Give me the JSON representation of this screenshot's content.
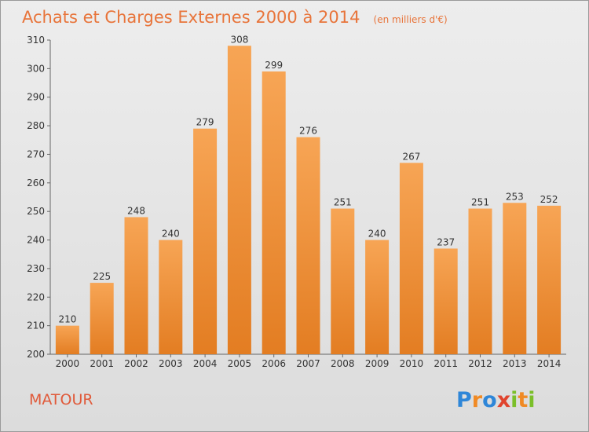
{
  "chart_data": {
    "type": "bar",
    "title": "Achats et Charges Externes 2000 à 2014",
    "subtitle": "(en milliers d'€)",
    "categories": [
      "2000",
      "2001",
      "2002",
      "2003",
      "2004",
      "2005",
      "2006",
      "2007",
      "2008",
      "2009",
      "2010",
      "2011",
      "2012",
      "2013",
      "2014"
    ],
    "values": [
      210,
      225,
      248,
      240,
      279,
      308,
      299,
      276,
      251,
      240,
      267,
      237,
      251,
      253,
      252
    ],
    "ylim": [
      200,
      310
    ],
    "yticks": [
      200,
      210,
      220,
      230,
      240,
      250,
      260,
      270,
      280,
      290,
      300,
      310
    ],
    "xlabel": "",
    "ylabel": "",
    "grid": false,
    "bar_color_top": "#f7a555",
    "bar_color_bottom": "#e37d22"
  },
  "footer": {
    "commune": "MATOUR",
    "logo": {
      "text": "Proxiti",
      "letters": [
        {
          "ch": "P",
          "color": "#2e86d8"
        },
        {
          "ch": "r",
          "color": "#f08a24"
        },
        {
          "ch": "o",
          "color": "#2e86d8"
        },
        {
          "ch": "x",
          "color": "#e0442e"
        },
        {
          "ch": "i",
          "color": "#7bbf2a"
        },
        {
          "ch": "t",
          "color": "#f08a24"
        },
        {
          "ch": "i",
          "color": "#7bbf2a"
        }
      ]
    }
  }
}
